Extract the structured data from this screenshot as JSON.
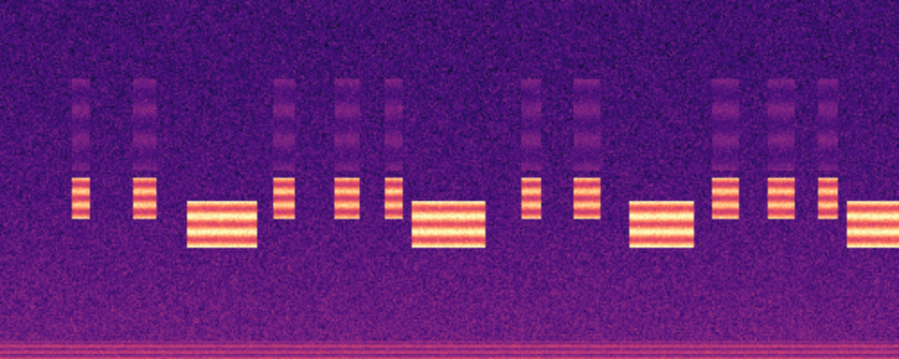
{
  "chart_data": {
    "type": "spectrogram",
    "xlim": [
      0,
      1
    ],
    "ylim": [
      0,
      1
    ],
    "tick_labels": false,
    "events": [
      {
        "start": 0.0,
        "end": 1.0,
        "bands": [
          {
            "low": 0.0,
            "high": 0.05,
            "intensity": 0.55
          }
        ]
      },
      {
        "start": 0.08,
        "end": 0.1,
        "bands": [
          {
            "low": 0.39,
            "high": 0.505,
            "intensity": 0.9
          },
          {
            "low": 0.525,
            "high": 0.78,
            "intensity": 0.35
          }
        ]
      },
      {
        "start": 0.147,
        "end": 0.173,
        "bands": [
          {
            "low": 0.39,
            "high": 0.505,
            "intensity": 0.9
          },
          {
            "low": 0.525,
            "high": 0.78,
            "intensity": 0.35
          }
        ]
      },
      {
        "start": 0.207,
        "end": 0.285,
        "bands": [
          {
            "low": 0.31,
            "high": 0.44,
            "intensity": 1.0
          }
        ]
      },
      {
        "start": 0.304,
        "end": 0.328,
        "bands": [
          {
            "low": 0.39,
            "high": 0.505,
            "intensity": 0.9
          },
          {
            "low": 0.525,
            "high": 0.78,
            "intensity": 0.35
          }
        ]
      },
      {
        "start": 0.371,
        "end": 0.4,
        "bands": [
          {
            "low": 0.39,
            "high": 0.505,
            "intensity": 0.9
          },
          {
            "low": 0.525,
            "high": 0.78,
            "intensity": 0.35
          }
        ]
      },
      {
        "start": 0.427,
        "end": 0.447,
        "bands": [
          {
            "low": 0.39,
            "high": 0.505,
            "intensity": 0.9
          },
          {
            "low": 0.525,
            "high": 0.78,
            "intensity": 0.35
          }
        ]
      },
      {
        "start": 0.457,
        "end": 0.54,
        "bands": [
          {
            "low": 0.31,
            "high": 0.44,
            "intensity": 1.0
          }
        ]
      },
      {
        "start": 0.58,
        "end": 0.602,
        "bands": [
          {
            "low": 0.39,
            "high": 0.505,
            "intensity": 0.9
          },
          {
            "low": 0.525,
            "high": 0.78,
            "intensity": 0.35
          }
        ]
      },
      {
        "start": 0.638,
        "end": 0.668,
        "bands": [
          {
            "low": 0.39,
            "high": 0.505,
            "intensity": 0.9
          },
          {
            "low": 0.525,
            "high": 0.78,
            "intensity": 0.35
          }
        ]
      },
      {
        "start": 0.7,
        "end": 0.773,
        "bands": [
          {
            "low": 0.31,
            "high": 0.44,
            "intensity": 1.0
          }
        ]
      },
      {
        "start": 0.793,
        "end": 0.822,
        "bands": [
          {
            "low": 0.39,
            "high": 0.505,
            "intensity": 0.9
          },
          {
            "low": 0.525,
            "high": 0.78,
            "intensity": 0.35
          }
        ]
      },
      {
        "start": 0.855,
        "end": 0.885,
        "bands": [
          {
            "low": 0.39,
            "high": 0.505,
            "intensity": 0.9
          },
          {
            "low": 0.525,
            "high": 0.78,
            "intensity": 0.35
          }
        ]
      },
      {
        "start": 0.911,
        "end": 0.932,
        "bands": [
          {
            "low": 0.39,
            "high": 0.505,
            "intensity": 0.9
          },
          {
            "low": 0.525,
            "high": 0.78,
            "intensity": 0.35
          }
        ]
      },
      {
        "start": 0.942,
        "end": 1.0,
        "bands": [
          {
            "low": 0.31,
            "high": 0.44,
            "intensity": 1.0
          }
        ]
      }
    ]
  }
}
